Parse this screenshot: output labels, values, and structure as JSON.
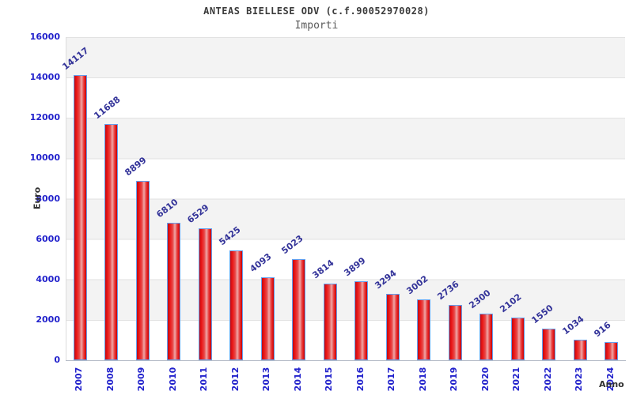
{
  "title": "ANTEAS BIELLESE ODV (c.f.90052970028)",
  "subtitle": "Importi",
  "chart_data": {
    "type": "bar",
    "categories": [
      "2007",
      "2008",
      "2009",
      "2010",
      "2011",
      "2012",
      "2013",
      "2014",
      "2015",
      "2016",
      "2017",
      "2018",
      "2019",
      "2020",
      "2021",
      "2022",
      "2023",
      "2024"
    ],
    "values": [
      14117,
      11688,
      8899,
      6810,
      6529,
      5425,
      4093,
      5023,
      3814,
      3899,
      3294,
      3002,
      2736,
      2300,
      2102,
      1550,
      1034,
      916
    ],
    "title": "ANTEAS BIELLESE ODV (c.f.90052970028)",
    "subtitle": "Importi",
    "xlabel": "Anno",
    "ylabel": "Euro",
    "ylim": [
      0,
      16000
    ],
    "yticks": [
      0,
      2000,
      4000,
      6000,
      8000,
      10000,
      12000,
      14000,
      16000
    ],
    "grid": true,
    "legend": false,
    "colors": {
      "bar_fill": "#e81616",
      "bar_highlight": "#efa8a8",
      "bar_border": "#63a0ef",
      "value_label": "#333399",
      "tick_label": "#2222cc",
      "axis_title": "#303030",
      "band": "#f3f3f3",
      "gridline": "#e2e2e2"
    }
  }
}
